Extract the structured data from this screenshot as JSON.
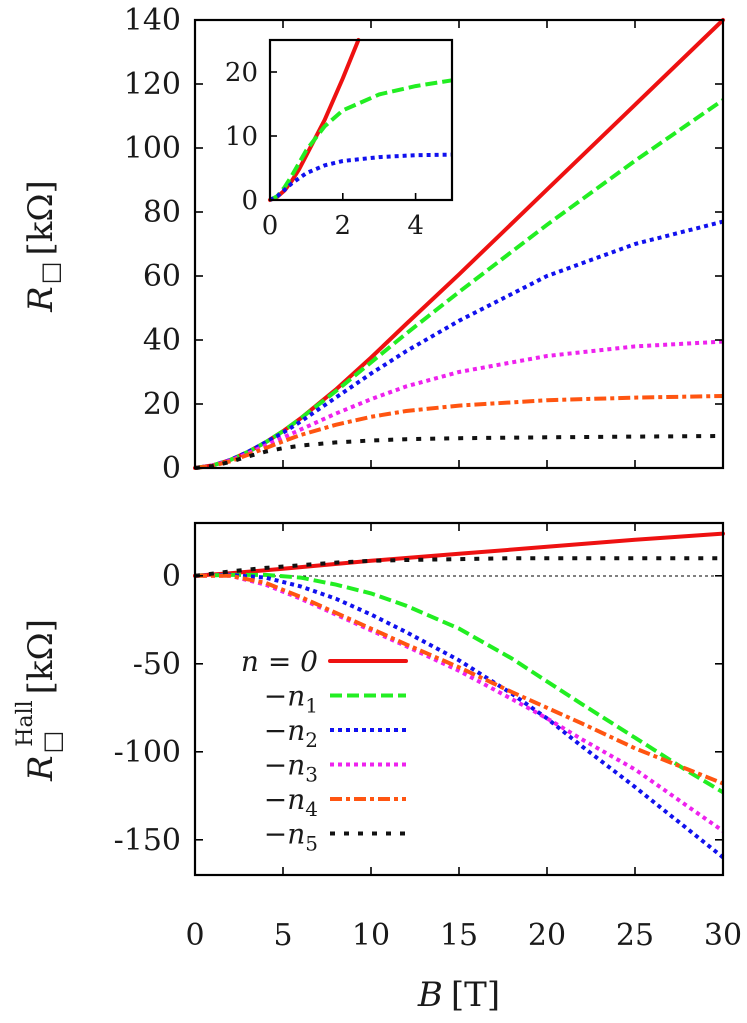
{
  "chart_data": [
    {
      "id": "top",
      "type": "line",
      "xlabel_var": "B",
      "xlabel_unit": "[T]",
      "ylabel_var": "R",
      "ylabel_unit": "[kΩ]",
      "xlim": [
        0,
        30
      ],
      "ylim": [
        0,
        140
      ],
      "yticks": [
        0,
        20,
        40,
        60,
        80,
        100,
        120,
        140
      ],
      "ytick_labels": [
        "0",
        "20",
        "40",
        "60",
        "80",
        "100",
        "120",
        "140"
      ],
      "series": [
        {
          "name": "n = 0",
          "color": "#ee1111",
          "dash": "solid",
          "x": [
            0,
            1,
            2,
            3,
            4,
            5,
            6,
            8,
            10,
            12,
            15,
            20,
            25,
            30
          ],
          "y": [
            0,
            0.8,
            2.5,
            5,
            8,
            11.5,
            15.5,
            24.5,
            34.5,
            45,
            60.5,
            87,
            113.5,
            140
          ]
        },
        {
          "name": "-n1",
          "color": "#22ee22",
          "dash": "dashed",
          "x": [
            0,
            1,
            2,
            3,
            4,
            5,
            6,
            8,
            10,
            12,
            15,
            20,
            25,
            30
          ],
          "y": [
            0,
            0.8,
            2.5,
            5,
            8,
            11.5,
            15.5,
            24,
            33,
            42,
            55,
            76,
            96,
            115
          ]
        },
        {
          "name": "-n2",
          "color": "#1111ee",
          "dash": "dotted",
          "x": [
            0,
            1,
            2,
            3,
            4,
            5,
            6,
            8,
            10,
            12,
            15,
            20,
            25,
            30
          ],
          "y": [
            0,
            0.8,
            2.5,
            5,
            8,
            11,
            14.5,
            22,
            29.5,
            36.5,
            46,
            60,
            70,
            77
          ]
        },
        {
          "name": "-n3",
          "color": "#ee22ee",
          "dash": "dotted",
          "x": [
            0,
            1,
            2,
            3,
            4,
            5,
            6,
            8,
            10,
            12,
            15,
            20,
            25,
            30
          ],
          "y": [
            0,
            0.8,
            2.3,
            4.6,
            7,
            9.5,
            12,
            17,
            21.5,
            25.5,
            30,
            35,
            38,
            39.5
          ]
        },
        {
          "name": "-n4",
          "color": "#ff5511",
          "dash": "dashdot",
          "x": [
            0,
            1,
            2,
            3,
            4,
            5,
            6,
            8,
            10,
            12,
            15,
            20,
            25,
            30
          ],
          "y": [
            0,
            0.7,
            2.1,
            4.1,
            6.2,
            8.3,
            10.3,
            13.5,
            16,
            17.8,
            19.5,
            21.2,
            22,
            22.5
          ]
        },
        {
          "name": "-n5",
          "color": "#111111",
          "dash": "sparse",
          "x": [
            0,
            1,
            2,
            3,
            4,
            5,
            6,
            8,
            10,
            12,
            15,
            20,
            25,
            30
          ],
          "y": [
            0,
            0.6,
            1.9,
            3.6,
            5.1,
            6.2,
            7,
            8,
            8.6,
            9,
            9.3,
            9.6,
            9.8,
            10
          ]
        }
      ]
    },
    {
      "id": "inset",
      "type": "line",
      "xlim": [
        0,
        5
      ],
      "ylim": [
        0,
        25
      ],
      "xticks": [
        0,
        2,
        4
      ],
      "xtick_labels": [
        "0",
        "2",
        "4"
      ],
      "yticks": [
        0,
        10,
        20
      ],
      "ytick_labels": [
        "0",
        "10",
        "20"
      ],
      "series": [
        {
          "name": "n = 0",
          "color": "#ee1111",
          "dash": "solid",
          "x": [
            0,
            0.2,
            0.4,
            0.6,
            0.8,
            1,
            1.5,
            2,
            2.5
          ],
          "y": [
            0,
            0.5,
            1.5,
            3,
            4.8,
            7,
            12.5,
            19,
            26
          ]
        },
        {
          "name": "-n1",
          "color": "#22ee22",
          "dash": "dashed",
          "x": [
            0,
            0.2,
            0.4,
            0.6,
            0.8,
            1,
            1.5,
            2,
            3,
            4,
            5
          ],
          "y": [
            0,
            0.6,
            2,
            3.8,
            5.8,
            7.8,
            11.5,
            14,
            16.5,
            17.8,
            18.7
          ]
        },
        {
          "name": "-n2",
          "color": "#1111ee",
          "dash": "dotted",
          "x": [
            0,
            0.2,
            0.4,
            0.6,
            0.8,
            1,
            1.5,
            2,
            3,
            4,
            5
          ],
          "y": [
            0,
            0.6,
            1.6,
            2.6,
            3.4,
            4.2,
            5.4,
            6.1,
            6.7,
            7,
            7.1
          ]
        }
      ]
    },
    {
      "id": "bottom",
      "type": "line",
      "xlabel_var": "B",
      "xlabel_unit": "[T]",
      "ylabel_var": "R",
      "ylabel_sup": "Hall",
      "ylabel_unit": "[kΩ]",
      "xlim": [
        0,
        30
      ],
      "ylim": [
        -170,
        30
      ],
      "xticks": [
        0,
        5,
        10,
        15,
        20,
        25,
        30
      ],
      "xtick_labels": [
        "0",
        "5",
        "10",
        "15",
        "20",
        "25",
        "30"
      ],
      "yticks": [
        0,
        -50,
        -100,
        -150
      ],
      "ytick_labels": [
        "0",
        "-50",
        "-100",
        "-150"
      ],
      "series": [
        {
          "name": "n = 0",
          "color": "#ee1111",
          "dash": "solid",
          "x": [
            0,
            2,
            5,
            10,
            15,
            20,
            25,
            30
          ],
          "y": [
            0,
            1.5,
            4,
            8.5,
            12.5,
            16.5,
            20.5,
            24
          ]
        },
        {
          "name": "-n1",
          "color": "#22ee22",
          "dash": "dashed",
          "x": [
            0,
            2,
            4,
            6,
            8,
            10,
            12,
            15,
            18,
            20,
            22,
            25,
            28,
            30
          ],
          "y": [
            0,
            0.5,
            0.5,
            -1,
            -5,
            -10,
            -17,
            -30,
            -47,
            -60,
            -73,
            -92,
            -111,
            -123
          ]
        },
        {
          "name": "-n2",
          "color": "#1111ee",
          "dash": "dotted",
          "x": [
            0,
            2,
            4,
            6,
            8,
            10,
            12,
            15,
            18,
            20,
            22,
            25,
            28,
            30
          ],
          "y": [
            0,
            0.5,
            -1,
            -6,
            -13,
            -22,
            -32,
            -48,
            -67,
            -81,
            -97,
            -120,
            -144,
            -160
          ]
        },
        {
          "name": "-n3",
          "color": "#ee22ee",
          "dash": "dotted",
          "x": [
            0,
            2,
            4,
            6,
            8,
            10,
            12,
            15,
            18,
            20,
            22,
            25,
            28,
            30
          ],
          "y": [
            0,
            0,
            -5,
            -13,
            -22,
            -31,
            -40,
            -54,
            -70,
            -81,
            -93,
            -110,
            -131,
            -145
          ]
        },
        {
          "name": "-n4",
          "color": "#ff5511",
          "dash": "dashdot",
          "x": [
            0,
            2,
            4,
            6,
            8,
            10,
            12,
            15,
            18,
            20,
            22,
            25,
            28,
            30
          ],
          "y": [
            0,
            0,
            -4,
            -12,
            -21,
            -30,
            -39,
            -52,
            -66,
            -75,
            -84,
            -98,
            -110,
            -118
          ]
        },
        {
          "name": "-n5",
          "color": "#111111",
          "dash": "sparse",
          "x": [
            0,
            2,
            4,
            6,
            8,
            10,
            12,
            15,
            18,
            20,
            25,
            30
          ],
          "y": [
            0,
            2.5,
            4.5,
            6,
            7.5,
            8.5,
            9,
            9.5,
            10,
            10,
            10,
            10
          ]
        }
      ],
      "reference_line_y": 0
    }
  ],
  "legend": {
    "entries": [
      {
        "label": "n = 0",
        "base": "n = 0",
        "sub": "",
        "color": "#ee1111",
        "dash": "solid"
      },
      {
        "label": "−n1",
        "base": "−n",
        "sub": "1",
        "color": "#22ee22",
        "dash": "dashed"
      },
      {
        "label": "−n2",
        "base": "−n",
        "sub": "2",
        "color": "#1111ee",
        "dash": "dotted"
      },
      {
        "label": "−n3",
        "base": "−n",
        "sub": "3",
        "color": "#ee22ee",
        "dash": "dotted"
      },
      {
        "label": "−n4",
        "base": "−n",
        "sub": "4",
        "color": "#ff5511",
        "dash": "dashdot"
      },
      {
        "label": "−n5",
        "base": "−n",
        "sub": "5",
        "color": "#111111",
        "dash": "sparse"
      }
    ]
  }
}
